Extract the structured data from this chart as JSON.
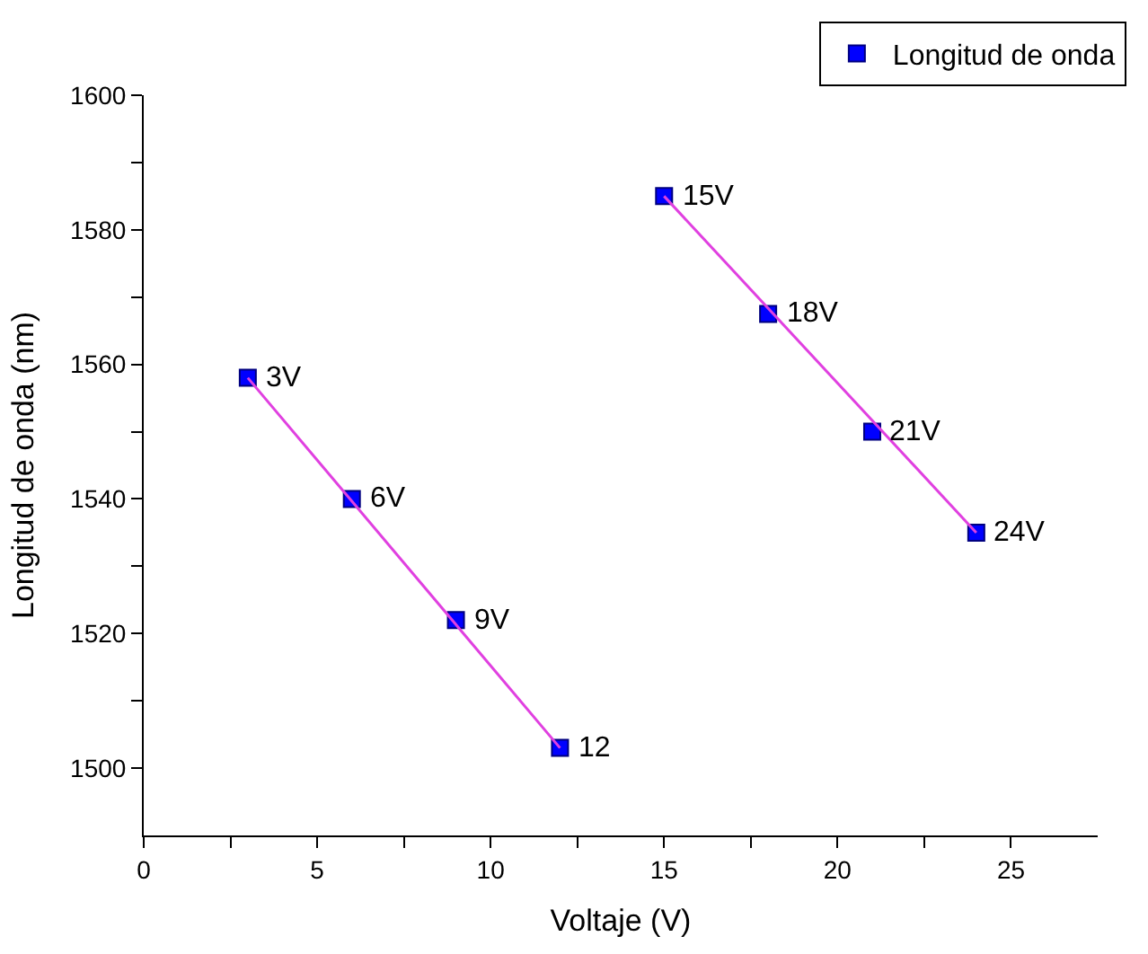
{
  "chart_data": {
    "type": "scatter",
    "xlabel": "Voltaje (V)",
    "ylabel": "Longitud de onda (nm)",
    "xlim": [
      0,
      27.5
    ],
    "ylim": [
      1490,
      1600
    ],
    "xticks": [
      0,
      {
        "value": 2.5,
        "label": null
      },
      5,
      {
        "value": 7.5,
        "label": null
      },
      10,
      {
        "value": 12.5,
        "label": null
      },
      15,
      {
        "value": 17.5,
        "label": null
      },
      20,
      {
        "value": 22.5,
        "label": null
      },
      25
    ],
    "yticks": [
      1500,
      {
        "value": 1510,
        "label": null
      },
      1520,
      {
        "value": 1530,
        "label": null
      },
      1540,
      {
        "value": 1550,
        "label": null
      },
      1560,
      {
        "value": 1570,
        "label": null
      },
      1580,
      {
        "value": 1590,
        "label": null
      },
      1600
    ],
    "legend": "top right",
    "series": [
      {
        "name": "Longitud de onda",
        "marker": "square",
        "color": "#0000ff",
        "x": [
          3,
          6,
          9,
          12,
          15,
          18,
          21,
          24
        ],
        "values": [
          1558,
          1540,
          1522,
          1503,
          1585,
          1567.5,
          1550,
          1535
        ]
      },
      {
        "type": "line",
        "marker": "none",
        "color": "#e040e0",
        "x": [
          3,
          12
        ],
        "values": [
          1558,
          1503
        ]
      },
      {
        "type": "line",
        "marker": "none",
        "color": "#e040e0",
        "x": [
          15,
          24
        ],
        "values": [
          1585,
          1535
        ]
      }
    ],
    "annotations": [
      {
        "text": "3V",
        "x": 3,
        "y": 1558
      },
      {
        "text": "6V",
        "x": 6,
        "y": 1540
      },
      {
        "text": "9V",
        "x": 9,
        "y": 1522
      },
      {
        "text": "12",
        "x": 12,
        "y": 1503
      },
      {
        "text": "15V",
        "x": 15,
        "y": 1585
      },
      {
        "text": "18V",
        "x": 18,
        "y": 1567.5
      },
      {
        "text": "21V",
        "x": 21,
        "y": 1550
      },
      {
        "text": "24V",
        "x": 24,
        "y": 1535
      }
    ]
  }
}
